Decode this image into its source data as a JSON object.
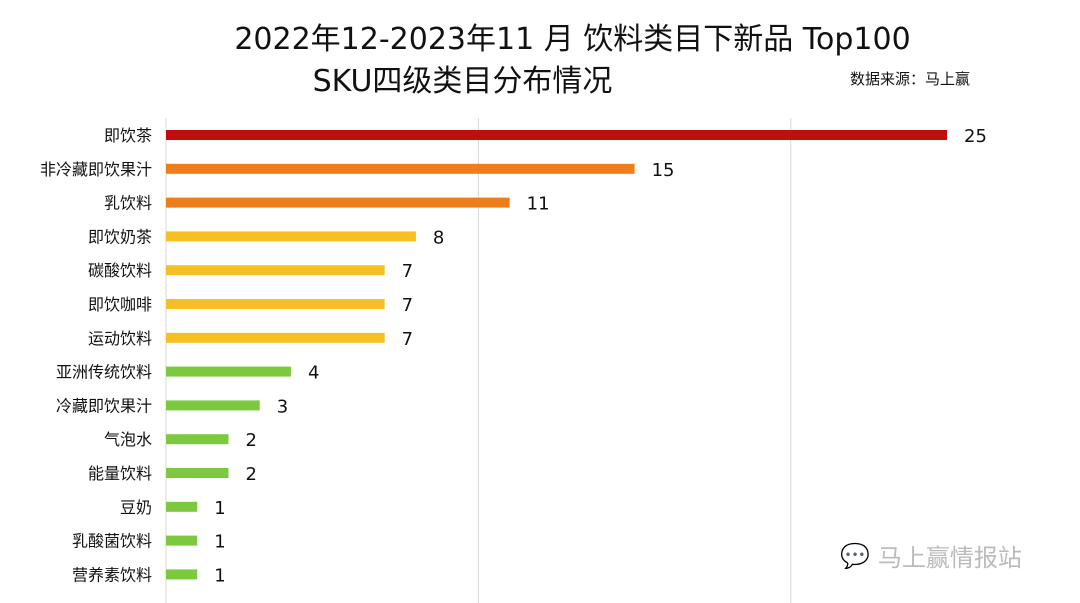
{
  "chart_data": {
    "type": "bar",
    "orientation": "horizontal",
    "title": "2022年12-2023年11 月 饮料类目下新品 Top100",
    "subtitle": "SKU四级类目分布情况",
    "source": "数据来源：马上赢",
    "categories": [
      "即饮茶",
      "非冷藏即饮果汁",
      "乳饮料",
      "即饮奶茶",
      "碳酸饮料",
      "即饮咖啡",
      "运动饮料",
      "亚洲传统饮料",
      "冷藏即饮果汁",
      "气泡水",
      "能量饮料",
      "豆奶",
      "乳酸菌饮料",
      "营养素饮料"
    ],
    "values": [
      25,
      15,
      11,
      8,
      7,
      7,
      7,
      4,
      3,
      2,
      2,
      1,
      1,
      1
    ],
    "colors": [
      "#c00d0d",
      "#f07d1c",
      "#f07d1c",
      "#f6c024",
      "#f6c024",
      "#f6c024",
      "#f6c024",
      "#7cc83f",
      "#7cc83f",
      "#7cc83f",
      "#7cc83f",
      "#7cc83f",
      "#7cc83f",
      "#7cc83f"
    ],
    "xlim": [
      0,
      25
    ],
    "gridlines_at": [
      10,
      20
    ],
    "grid": true,
    "data_labels": true
  },
  "watermark": {
    "text": "马上赢情报站",
    "icon": "wechat-icon"
  }
}
